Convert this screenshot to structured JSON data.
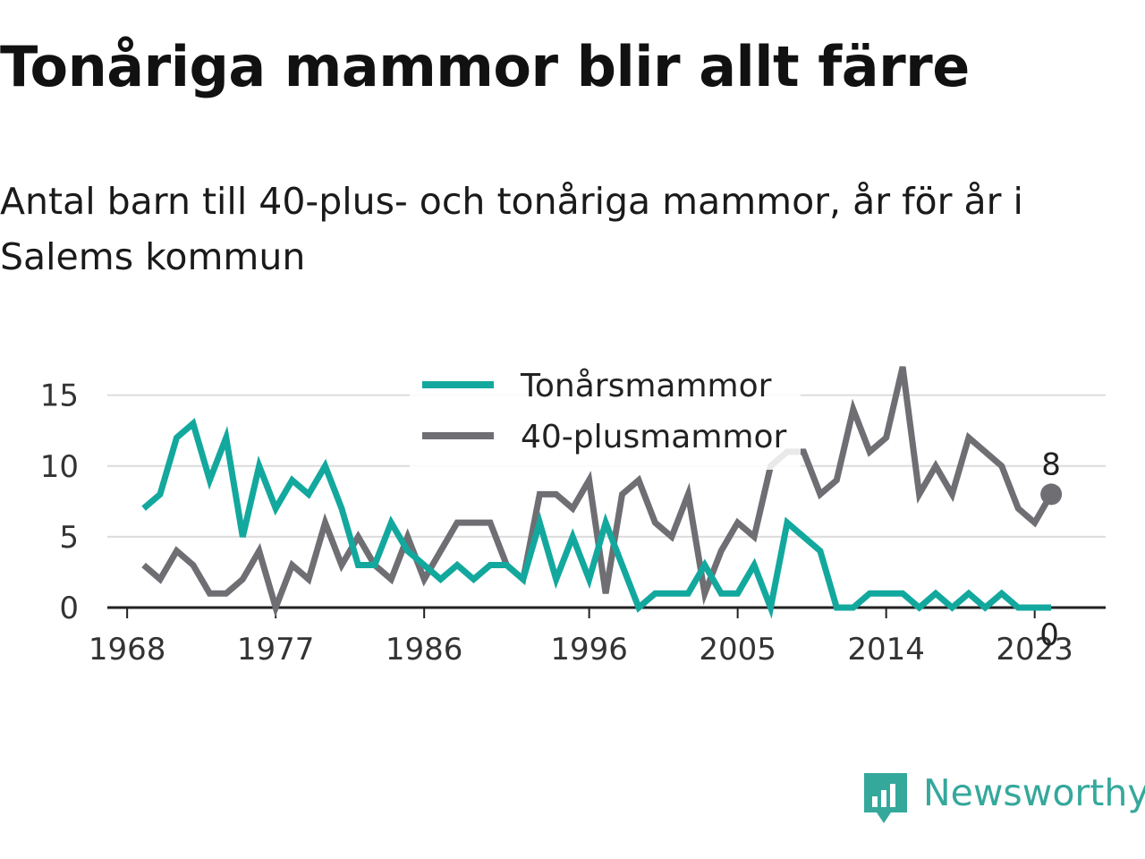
{
  "title": "Tonåriga mammor blir allt färre",
  "subtitle": "Antal barn till 40-plus- och tonåriga mammor, år för år i Salems kommun",
  "brand": {
    "name": "Newsworthy",
    "icon": "newsworthy-chart-logo-icon",
    "color": "#35a89c"
  },
  "chart_data": {
    "type": "line",
    "x": [
      1969,
      1970,
      1971,
      1972,
      1973,
      1974,
      1975,
      1976,
      1977,
      1978,
      1979,
      1980,
      1981,
      1982,
      1983,
      1984,
      1985,
      1986,
      1987,
      1988,
      1989,
      1990,
      1991,
      1992,
      1993,
      1994,
      1995,
      1996,
      1997,
      1998,
      1999,
      2000,
      2001,
      2002,
      2003,
      2004,
      2005,
      2006,
      2007,
      2008,
      2009,
      2010,
      2011,
      2012,
      2013,
      2014,
      2015,
      2016,
      2017,
      2018,
      2019,
      2020,
      2021,
      2022,
      2023,
      2024
    ],
    "series": [
      {
        "name": "Tonårsmammor",
        "color": "#13a89e",
        "values": [
          7,
          8,
          12,
          13,
          9,
          12,
          5,
          10,
          7,
          9,
          8,
          10,
          7,
          3,
          3,
          6,
          4,
          3,
          2,
          3,
          2,
          3,
          3,
          2,
          6,
          2,
          5,
          2,
          6,
          3,
          0,
          1,
          1,
          1,
          3,
          1,
          1,
          3,
          0,
          6,
          5,
          4,
          0,
          0,
          1,
          1,
          1,
          0,
          1,
          0,
          1,
          0,
          1,
          0,
          0,
          0
        ],
        "end_label": "0"
      },
      {
        "name": "40-plusmammor",
        "color": "#6e6e73",
        "values": [
          3,
          2,
          4,
          3,
          1,
          1,
          2,
          4,
          0,
          3,
          2,
          6,
          3,
          5,
          3,
          2,
          5,
          2,
          4,
          6,
          6,
          6,
          3,
          2,
          8,
          8,
          7,
          9,
          1,
          8,
          9,
          6,
          5,
          8,
          1,
          4,
          6,
          5,
          10,
          11,
          11,
          8,
          9,
          14,
          11,
          12,
          17,
          8,
          10,
          8,
          12,
          11,
          10,
          7,
          6,
          8
        ],
        "end_label": "8"
      }
    ],
    "x_ticks": [
      "1968",
      "1977",
      "1986",
      "1996",
      "2005",
      "2014",
      "2023"
    ],
    "x_tick_values": [
      1968,
      1977,
      1986,
      1996,
      2005,
      2014,
      2023
    ],
    "y_ticks": [
      "0",
      "5",
      "10",
      "15"
    ],
    "y_tick_values": [
      0,
      5,
      10,
      15
    ],
    "xlim": [
      1966.8,
      2027.3
    ],
    "ylim": [
      0,
      17
    ],
    "grid": "horizontal",
    "legend_position": "top-center"
  }
}
